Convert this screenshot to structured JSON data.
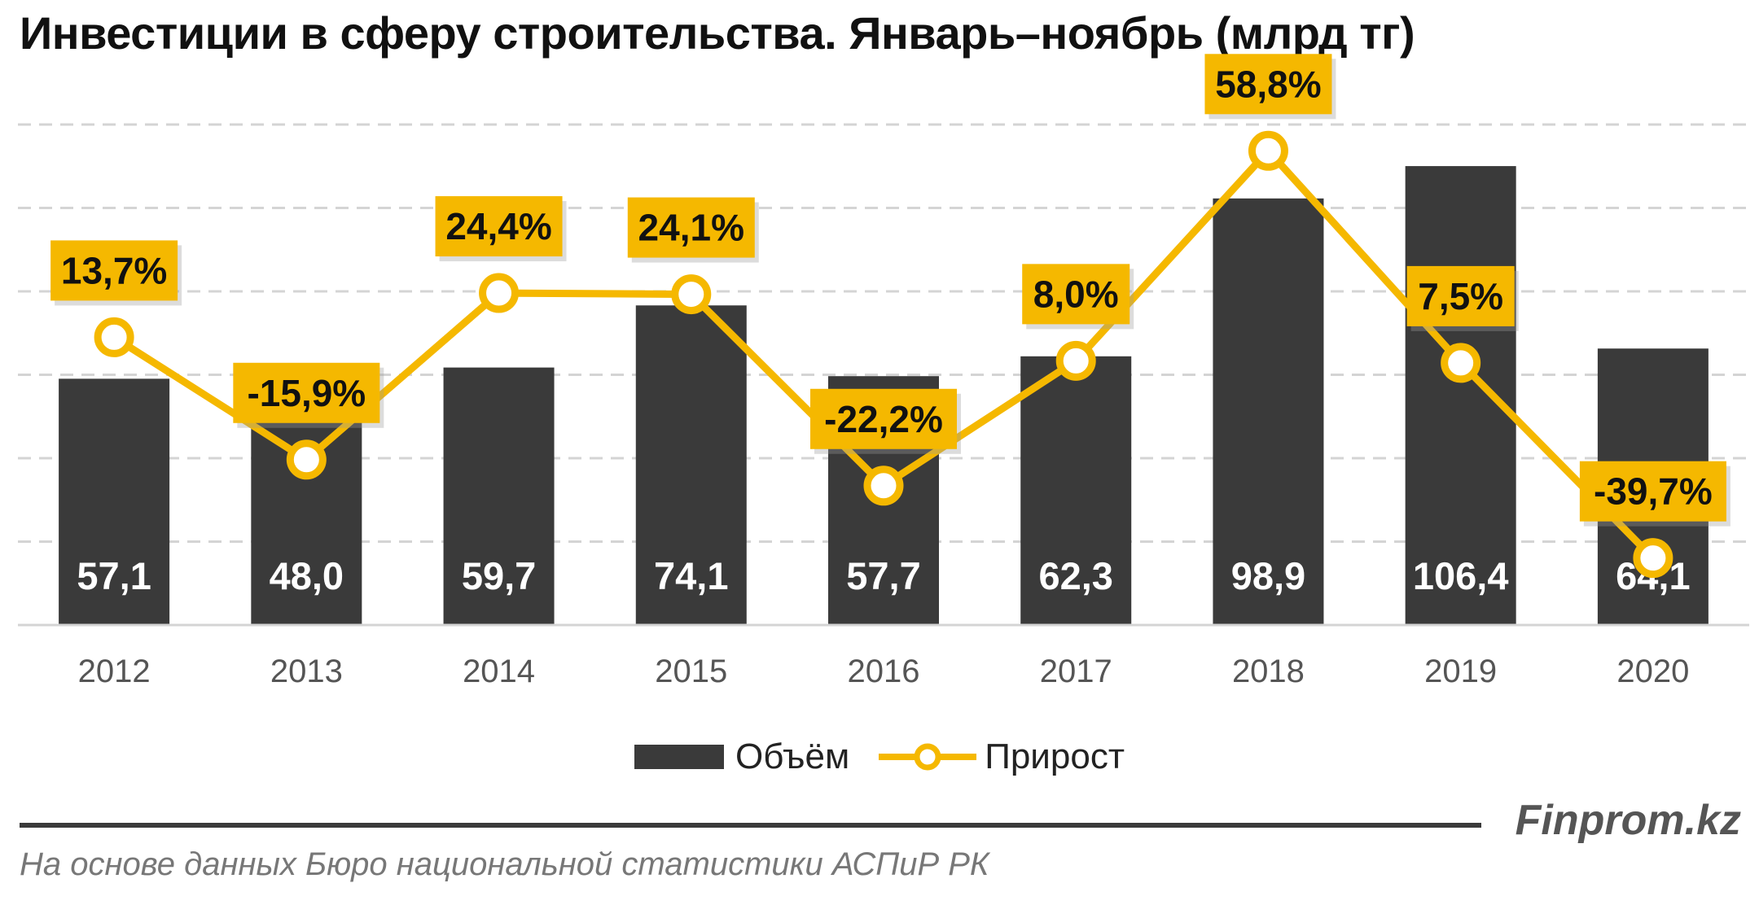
{
  "title": "Инвестиции в сферу строительства. Январь–ноябрь (млрд тг)",
  "legend": {
    "bar_label": "Объём",
    "line_label": "Прирост"
  },
  "brand": "Finprom.kz",
  "source": "На основе данных Бюро национальной статистики АСПиР РК",
  "colors": {
    "bar": "#3a3a3a",
    "line": "#f5b800",
    "grid": "#d4d4d4",
    "label_bg": "#f5b800"
  },
  "chart_data": {
    "type": "bar",
    "title": "Инвестиции в сферу строительства. Январь–ноябрь (млрд тг)",
    "categories": [
      "2012",
      "2013",
      "2014",
      "2015",
      "2016",
      "2017",
      "2018",
      "2019",
      "2020"
    ],
    "series": [
      {
        "name": "Объём",
        "type": "bar",
        "values": [
          57.1,
          48.0,
          59.7,
          74.1,
          57.7,
          62.3,
          98.9,
          106.4,
          64.1
        ]
      },
      {
        "name": "Прирост",
        "type": "line",
        "values": [
          13.7,
          -15.9,
          24.4,
          24.1,
          -22.2,
          8.0,
          58.8,
          7.5,
          -39.7
        ]
      }
    ],
    "bar_labels": [
      "57,1",
      "48,0",
      "59,7",
      "74,1",
      "57,7",
      "62,3",
      "98,9",
      "106,4",
      "64,1"
    ],
    "line_labels": [
      "13,7%",
      "-15,9%",
      "24,4%",
      "24,1%",
      "-22,2%",
      "8,0%",
      "58,8%",
      "7,5%",
      "-39,7%"
    ],
    "ylim": [
      0,
      120
    ],
    "grid": true,
    "legend_position": "bottom"
  }
}
